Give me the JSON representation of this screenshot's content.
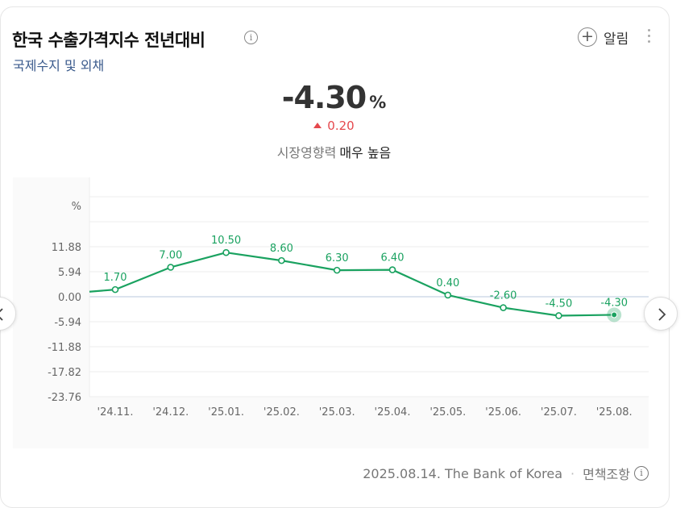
{
  "header": {
    "title": "한국 수출가격지수 전년대비",
    "subtitle": "국제수지 및 외채",
    "alarm_label": "알림"
  },
  "summary": {
    "value": "-4.30",
    "unit": "%",
    "change": "0.20",
    "impact_label": "시장영향력",
    "impact_level": "매우 높음"
  },
  "footer": {
    "source": "2025.08.14. The Bank of Korea",
    "disclaimer": "면책조항"
  },
  "colors": {
    "line": "#1aa260",
    "up": "#e5484d",
    "zero_line": "#b8c9dc"
  },
  "chart_data": {
    "type": "line",
    "ylabel": "%",
    "x": [
      "'24.11.",
      "'24.12.",
      "'25.01.",
      "'25.02.",
      "'25.03.",
      "'25.04.",
      "'25.05.",
      "'25.06.",
      "'25.07.",
      "'25.08."
    ],
    "series": [
      {
        "values": [
          1.7,
          7.0,
          10.5,
          8.6,
          6.3,
          6.4,
          0.4,
          -2.6,
          -4.5,
          -4.3
        ]
      }
    ],
    "value_labels": [
      "1.70",
      "7.00",
      "10.50",
      "8.60",
      "6.30",
      "6.40",
      "0.40",
      "-2.60",
      "-4.50",
      "-4.30"
    ],
    "yticks": [
      11.88,
      5.94,
      0.0,
      -5.94,
      -11.88,
      -17.82,
      -23.76
    ],
    "ytick_labels": [
      "11.88",
      "5.94",
      "0.00",
      "-5.94",
      "-11.88",
      "-17.82",
      "-23.76"
    ],
    "ylim": [
      -23.76,
      23.76
    ],
    "leading_value": 1.2,
    "highlight_last": true,
    "grid": true
  }
}
